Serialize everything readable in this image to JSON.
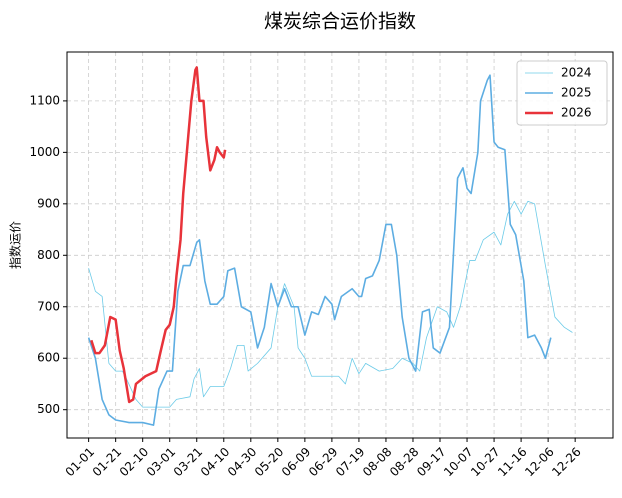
{
  "chart_data": {
    "type": "line",
    "title": "煤炭综合运价指数",
    "ylabel": "指数运价",
    "xlim": [
      -16,
      388
    ],
    "ylim": [
      445,
      1195
    ],
    "xticks": [
      {
        "value": 0,
        "label": "01-01"
      },
      {
        "value": 20,
        "label": "01-21"
      },
      {
        "value": 40,
        "label": "02-10"
      },
      {
        "value": 60,
        "label": "03-01"
      },
      {
        "value": 80,
        "label": "03-21"
      },
      {
        "value": 100,
        "label": "04-10"
      },
      {
        "value": 120,
        "label": "04-30"
      },
      {
        "value": 140,
        "label": "05-20"
      },
      {
        "value": 160,
        "label": "06-09"
      },
      {
        "value": 180,
        "label": "06-29"
      },
      {
        "value": 200,
        "label": "07-19"
      },
      {
        "value": 220,
        "label": "08-08"
      },
      {
        "value": 240,
        "label": "08-28"
      },
      {
        "value": 260,
        "label": "09-17"
      },
      {
        "value": 280,
        "label": "10-07"
      },
      {
        "value": 300,
        "label": "10-27"
      },
      {
        "value": 320,
        "label": "11-16"
      },
      {
        "value": 340,
        "label": "12-06"
      },
      {
        "value": 360,
        "label": "12-26"
      }
    ],
    "yticks": [
      500,
      600,
      700,
      800,
      900,
      1000,
      1100
    ],
    "grid": true,
    "legend": "upper right",
    "series": [
      {
        "name": "2024",
        "color": "#6ccbe8",
        "x": [
          0,
          5,
          10,
          15,
          20,
          25,
          28,
          35,
          40,
          50,
          60,
          65,
          75,
          78,
          82,
          85,
          90,
          100,
          105,
          110,
          115,
          118,
          125,
          135,
          140,
          145,
          152,
          155,
          160,
          165,
          175,
          185,
          190,
          195,
          200,
          205,
          215,
          225,
          232,
          240,
          245,
          250,
          258,
          265,
          270,
          275,
          282,
          286,
          292,
          300,
          305,
          310,
          315,
          320,
          325,
          330,
          338,
          345,
          352,
          358
        ],
        "values": [
          775,
          730,
          720,
          590,
          575,
          575,
          560,
          520,
          505,
          505,
          505,
          520,
          525,
          560,
          580,
          525,
          545,
          545,
          580,
          625,
          625,
          575,
          590,
          620,
          700,
          745,
          700,
          620,
          600,
          565,
          565,
          565,
          550,
          600,
          570,
          590,
          575,
          580,
          600,
          590,
          575,
          640,
          700,
          690,
          660,
          700,
          790,
          790,
          830,
          845,
          820,
          880,
          905,
          880,
          905,
          900,
          780,
          680,
          660,
          650
        ]
      },
      {
        "name": "2025",
        "color": "#5dade2",
        "x": [
          0,
          5,
          10,
          15,
          20,
          30,
          40,
          48,
          52,
          58,
          62,
          66,
          70,
          75,
          80,
          82,
          86,
          90,
          95,
          100,
          103,
          108,
          113,
          120,
          125,
          130,
          135,
          140,
          145,
          150,
          155,
          160,
          165,
          170,
          175,
          180,
          182,
          187,
          195,
          200,
          202,
          205,
          210,
          215,
          220,
          224,
          228,
          232,
          237,
          242,
          247,
          252,
          255,
          260,
          267,
          273,
          277,
          280,
          283,
          288,
          290,
          295,
          297,
          300,
          303,
          308,
          312,
          316,
          322,
          325,
          330,
          335,
          338,
          342
        ],
        "values": [
          640,
          600,
          520,
          490,
          480,
          475,
          475,
          470,
          540,
          575,
          575,
          730,
          780,
          780,
          825,
          830,
          750,
          705,
          705,
          720,
          770,
          775,
          700,
          690,
          620,
          660,
          745,
          700,
          735,
          700,
          700,
          645,
          690,
          685,
          720,
          705,
          675,
          720,
          735,
          720,
          720,
          755,
          760,
          790,
          860,
          860,
          800,
          680,
          600,
          575,
          690,
          695,
          620,
          610,
          660,
          950,
          970,
          930,
          920,
          1000,
          1100,
          1140,
          1150,
          1020,
          1010,
          1005,
          860,
          840,
          750,
          640,
          645,
          620,
          600,
          640
        ]
      },
      {
        "name": "2026",
        "color": "#e8333a",
        "x": [
          2,
          5,
          8,
          12,
          16,
          20,
          23,
          26,
          30,
          33,
          35,
          42,
          50,
          53,
          57,
          60,
          63,
          65,
          68,
          70,
          73,
          76,
          79,
          80,
          82,
          85,
          87,
          90,
          93,
          95,
          97,
          100,
          101
        ],
        "values": [
          635,
          610,
          610,
          625,
          680,
          675,
          615,
          580,
          515,
          520,
          550,
          565,
          575,
          610,
          655,
          665,
          700,
          760,
          830,
          920,
          1010,
          1100,
          1160,
          1165,
          1100,
          1100,
          1030,
          965,
          985,
          1010,
          1000,
          990,
          1005
        ]
      }
    ]
  }
}
